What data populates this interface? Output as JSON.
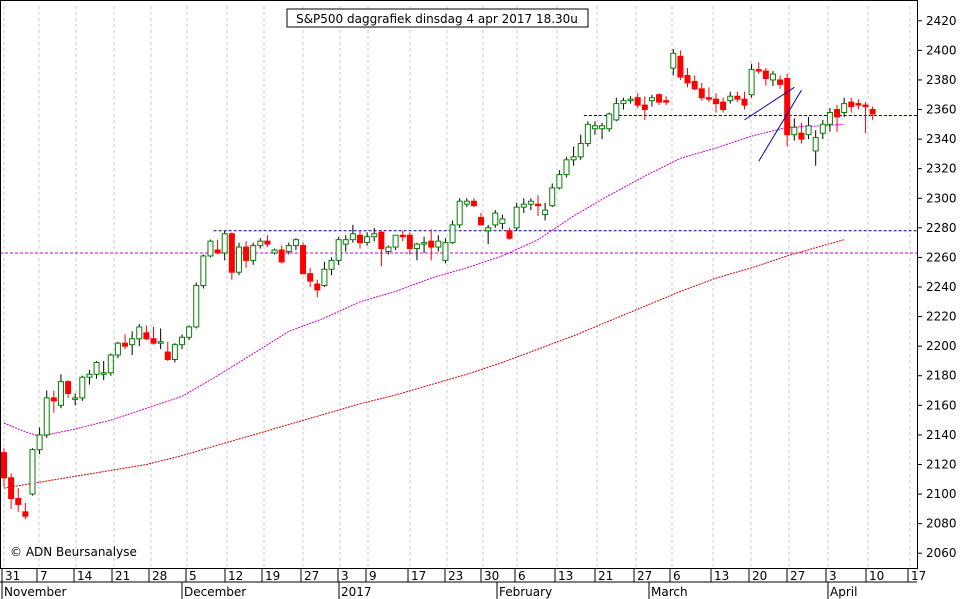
{
  "chart_data": {
    "type": "candlestick",
    "title": "S&P500 daggrafiek dinsdag 4 apr 2017 18.30u",
    "copyright": "© ADN Beursanalyse",
    "ylim": [
      2050,
      2430
    ],
    "y_ticks": [
      2060,
      2080,
      2100,
      2120,
      2140,
      2160,
      2180,
      2200,
      2220,
      2240,
      2260,
      2280,
      2300,
      2320,
      2340,
      2360,
      2380,
      2400,
      2420
    ],
    "x_tick_labels": [
      "31",
      "7",
      "14",
      "21",
      "28",
      "5",
      "12",
      "19",
      "27",
      "3",
      "9",
      "17",
      "23",
      "30",
      "6",
      "13",
      "21",
      "27",
      "6",
      "13",
      "20",
      "27",
      "3",
      "10",
      "17"
    ],
    "month_labels": [
      "November",
      "December",
      "2017",
      "February",
      "March",
      "April"
    ],
    "grid": true,
    "candles": [
      [
        2128,
        2131,
        2105,
        2111
      ],
      [
        2111,
        2114,
        2090,
        2097
      ],
      [
        2097,
        2104,
        2088,
        2093
      ],
      [
        2088,
        2094,
        2083,
        2085
      ],
      [
        2100,
        2131,
        2099,
        2130
      ],
      [
        2130,
        2145,
        2127,
        2140
      ],
      [
        2140,
        2170,
        2138,
        2165
      ],
      [
        2165,
        2170,
        2155,
        2163
      ],
      [
        2160,
        2181,
        2158,
        2176
      ],
      [
        2176,
        2177,
        2165,
        2168
      ],
      [
        2164,
        2168,
        2160,
        2165
      ],
      [
        2165,
        2180,
        2163,
        2179
      ],
      [
        2179,
        2184,
        2174,
        2181
      ],
      [
        2181,
        2190,
        2178,
        2189
      ],
      [
        2181,
        2190,
        2177,
        2182
      ],
      [
        2182,
        2195,
        2180,
        2194
      ],
      [
        2194,
        2203,
        2192,
        2202
      ],
      [
        2202,
        2208,
        2198,
        2200
      ],
      [
        2201,
        2210,
        2194,
        2205
      ],
      [
        2205,
        2215,
        2200,
        2213
      ],
      [
        2209,
        2214,
        2204,
        2205
      ],
      [
        2205,
        2213,
        2201,
        2202
      ],
      [
        2202,
        2212,
        2198,
        2203
      ],
      [
        2196,
        2203,
        2190,
        2191
      ],
      [
        2191,
        2202,
        2189,
        2201
      ],
      [
        2201,
        2208,
        2198,
        2206
      ],
      [
        2206,
        2214,
        2204,
        2213
      ],
      [
        2213,
        2243,
        2212,
        2241
      ],
      [
        2241,
        2262,
        2239,
        2261
      ],
      [
        2261,
        2272,
        2260,
        2271
      ],
      [
        2265,
        2272,
        2262,
        2263
      ],
      [
        2263,
        2278,
        2258,
        2276
      ],
      [
        2276,
        2277,
        2245,
        2250
      ],
      [
        2250,
        2270,
        2248,
        2267
      ],
      [
        2267,
        2271,
        2253,
        2258
      ],
      [
        2258,
        2270,
        2255,
        2268
      ],
      [
        2268,
        2273,
        2266,
        2271
      ],
      [
        2271,
        2275,
        2267,
        2269
      ],
      [
        2263,
        2266,
        2262,
        2265
      ],
      [
        2265,
        2268,
        2256,
        2257
      ],
      [
        2264,
        2270,
        2262,
        2268
      ],
      [
        2268,
        2273,
        2265,
        2272
      ],
      [
        2268,
        2270,
        2249,
        2249
      ],
      [
        2249,
        2253,
        2240,
        2244
      ],
      [
        2242,
        2245,
        2233,
        2238
      ],
      [
        2241,
        2257,
        2240,
        2252
      ],
      [
        2252,
        2260,
        2248,
        2258
      ],
      [
        2258,
        2274,
        2255,
        2272
      ],
      [
        2269,
        2275,
        2264,
        2272
      ],
      [
        2272,
        2282,
        2270,
        2276
      ],
      [
        2275,
        2278,
        2266,
        2270
      ],
      [
        2270,
        2277,
        2268,
        2274
      ],
      [
        2274,
        2280,
        2271,
        2276
      ],
      [
        2277,
        2278,
        2254,
        2266
      ],
      [
        2264,
        2268,
        2262,
        2267
      ],
      [
        2267,
        2275,
        2265,
        2275
      ],
      [
        2275,
        2278,
        2271,
        2274
      ],
      [
        2275,
        2277,
        2262,
        2266
      ],
      [
        2266,
        2270,
        2258,
        2269
      ],
      [
        2269,
        2274,
        2263,
        2270
      ],
      [
        2271,
        2279,
        2258,
        2267
      ],
      [
        2267,
        2275,
        2264,
        2271
      ],
      [
        2258,
        2273,
        2256,
        2270
      ],
      [
        2270,
        2285,
        2269,
        2282
      ],
      [
        2282,
        2300,
        2280,
        2298
      ],
      [
        2296,
        2300,
        2294,
        2298
      ],
      [
        2298,
        2300,
        2294,
        2295
      ],
      [
        2287,
        2290,
        2282,
        2282
      ],
      [
        2278,
        2282,
        2269,
        2280
      ],
      [
        2282,
        2292,
        2280,
        2290
      ],
      [
        2283,
        2289,
        2279,
        2286
      ],
      [
        2278,
        2280,
        2272,
        2273
      ],
      [
        2280,
        2297,
        2278,
        2294
      ],
      [
        2294,
        2300,
        2290,
        2296
      ],
      [
        2296,
        2300,
        2292,
        2298
      ],
      [
        2296,
        2302,
        2288,
        2295
      ],
      [
        2289,
        2297,
        2285,
        2292
      ],
      [
        2295,
        2310,
        2294,
        2307
      ],
      [
        2307,
        2319,
        2306,
        2316
      ],
      [
        2316,
        2328,
        2314,
        2326
      ],
      [
        2326,
        2335,
        2322,
        2328
      ],
      [
        2328,
        2343,
        2326,
        2337
      ],
      [
        2337,
        2352,
        2335,
        2350
      ],
      [
        2347,
        2352,
        2343,
        2349
      ],
      [
        2347,
        2351,
        2340,
        2349
      ],
      [
        2347,
        2358,
        2345,
        2357
      ],
      [
        2353,
        2368,
        2352,
        2364
      ],
      [
        2364,
        2368,
        2360,
        2366
      ],
      [
        2366,
        2369,
        2364,
        2367
      ],
      [
        2368,
        2371,
        2361,
        2363
      ],
      [
        2363,
        2369,
        2353,
        2360
      ],
      [
        2366,
        2370,
        2362,
        2368
      ],
      [
        2370,
        2371,
        2363,
        2365
      ],
      [
        2366,
        2369,
        2363,
        2365
      ],
      [
        2388,
        2401,
        2383,
        2398
      ],
      [
        2396,
        2400,
        2380,
        2382
      ],
      [
        2383,
        2388,
        2375,
        2378
      ],
      [
        2379,
        2383,
        2373,
        2374
      ],
      [
        2374,
        2378,
        2366,
        2368
      ],
      [
        2368,
        2375,
        2365,
        2367
      ],
      [
        2367,
        2371,
        2358,
        2364
      ],
      [
        2365,
        2368,
        2358,
        2360
      ],
      [
        2366,
        2372,
        2364,
        2369
      ],
      [
        2369,
        2372,
        2365,
        2367
      ],
      [
        2367,
        2372,
        2360,
        2363
      ],
      [
        2370,
        2391,
        2368,
        2387
      ],
      [
        2387,
        2392,
        2384,
        2386
      ],
      [
        2386,
        2388,
        2376,
        2381
      ],
      [
        2380,
        2386,
        2376,
        2384
      ],
      [
        2380,
        2383,
        2374,
        2377
      ],
      [
        2381,
        2384,
        2335,
        2343
      ],
      [
        2343,
        2354,
        2339,
        2348
      ],
      [
        2344,
        2351,
        2337,
        2340
      ],
      [
        2343,
        2355,
        2340,
        2349
      ],
      [
        2332,
        2346,
        2322,
        2341
      ],
      [
        2344,
        2353,
        2340,
        2350
      ],
      [
        2350,
        2361,
        2345,
        2358
      ],
      [
        2360,
        2363,
        2345,
        2355
      ],
      [
        2358,
        2368,
        2355,
        2364
      ],
      [
        2365,
        2368,
        2358,
        2362
      ],
      [
        2364,
        2367,
        2360,
        2363
      ],
      [
        2363,
        2365,
        2344,
        2362
      ],
      [
        2360,
        2362,
        2353,
        2357
      ]
    ],
    "ma_short": [
      [
        0,
        2148
      ],
      [
        3,
        2142
      ],
      [
        5,
        2139
      ],
      [
        10,
        2144
      ],
      [
        15,
        2150
      ],
      [
        20,
        2158
      ],
      [
        25,
        2166
      ],
      [
        30,
        2180
      ],
      [
        35,
        2195
      ],
      [
        40,
        2210
      ],
      [
        45,
        2219
      ],
      [
        50,
        2230
      ],
      [
        55,
        2237
      ],
      [
        60,
        2246
      ],
      [
        65,
        2253
      ],
      [
        70,
        2261
      ],
      [
        75,
        2272
      ],
      [
        80,
        2288
      ],
      [
        85,
        2302
      ],
      [
        90,
        2315
      ],
      [
        95,
        2327
      ],
      [
        100,
        2334
      ],
      [
        105,
        2342
      ],
      [
        110,
        2348
      ],
      [
        115,
        2349
      ],
      [
        118,
        2350
      ]
    ],
    "ma_long": [
      [
        0,
        2104
      ],
      [
        5,
        2108
      ],
      [
        10,
        2112
      ],
      [
        15,
        2116
      ],
      [
        20,
        2120
      ],
      [
        25,
        2126
      ],
      [
        30,
        2133
      ],
      [
        35,
        2140
      ],
      [
        40,
        2147
      ],
      [
        45,
        2154
      ],
      [
        50,
        2161
      ],
      [
        55,
        2167
      ],
      [
        60,
        2174
      ],
      [
        65,
        2181
      ],
      [
        70,
        2189
      ],
      [
        75,
        2198
      ],
      [
        80,
        2207
      ],
      [
        85,
        2217
      ],
      [
        90,
        2227
      ],
      [
        95,
        2237
      ],
      [
        100,
        2246
      ],
      [
        105,
        2253
      ],
      [
        110,
        2261
      ],
      [
        115,
        2268
      ],
      [
        118,
        2272
      ]
    ],
    "horizontal_lines": [
      {
        "value": 2263,
        "from": 0,
        "color": "#cc00cc"
      },
      {
        "value": 2278,
        "from": 30,
        "color": "#000080"
      },
      {
        "value": 2356,
        "from": 82,
        "color": "#000080"
      }
    ],
    "wedge_lines": [
      [
        [
          104,
          2353
        ],
        [
          111,
          2375
        ]
      ],
      [
        [
          106,
          2325
        ],
        [
          112,
          2373
        ]
      ]
    ],
    "colors": {
      "up_candle": "#008000",
      "down_candle": "#ff0000",
      "ma_short": "#cc00cc",
      "ma_long": "#dd0000",
      "grid": "#c8c8c8"
    }
  }
}
